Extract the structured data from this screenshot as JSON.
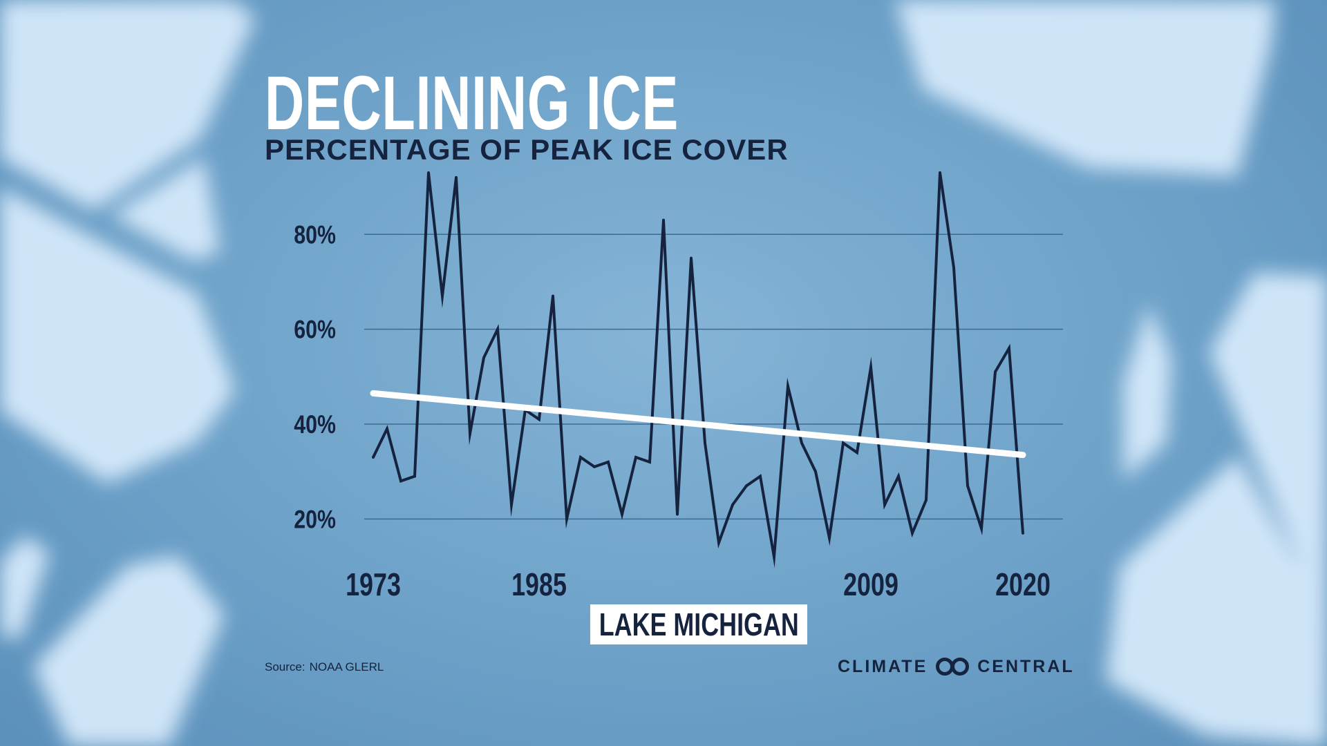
{
  "title": "DECLINING ICE",
  "subtitle": "PERCENTAGE OF PEAK ICE COVER",
  "source_label": "Source:",
  "source_value": "NOAA GLERL",
  "brand": {
    "left": "CLIMATE",
    "right": "CENTRAL"
  },
  "colors": {
    "line": "#15233f",
    "trend": "#ffffff",
    "grid": "#3e6a92",
    "text": "#15233f",
    "ice": "#d6e9fb"
  },
  "chart_data": {
    "type": "line",
    "title": "DECLINING ICE",
    "subtitle": "PERCENTAGE OF PEAK ICE COVER",
    "lake": "LAKE MICHIGAN",
    "xlabel": "",
    "ylabel": "",
    "ylim": [
      10,
      93
    ],
    "xlim": [
      1973,
      2021
    ],
    "grid": true,
    "yticks": [
      20,
      40,
      60,
      80
    ],
    "ytick_labels": [
      "20%",
      "40%",
      "60%",
      "80%"
    ],
    "xticks": [
      1973,
      1985,
      2009,
      2020
    ],
    "xtick_labels": [
      "1973",
      "1985",
      "2009",
      "2020"
    ],
    "series": [
      {
        "name": "Peak ice cover",
        "x": [
          1973,
          1974,
          1975,
          1976,
          1977,
          1978,
          1979,
          1980,
          1981,
          1982,
          1983,
          1984,
          1985,
          1986,
          1987,
          1988,
          1989,
          1990,
          1991,
          1992,
          1993,
          1994,
          1995,
          1996,
          1997,
          1998,
          1999,
          2000,
          2001,
          2002,
          2003,
          2004,
          2005,
          2006,
          2007,
          2008,
          2009,
          2010,
          2011,
          2012,
          2013,
          2014,
          2015,
          2016,
          2017,
          2018,
          2019,
          2020
        ],
        "values": [
          33,
          39,
          28,
          29,
          93,
          67,
          92,
          38,
          54,
          60,
          23,
          43,
          41,
          67,
          20,
          33,
          31,
          32,
          21,
          33,
          32,
          83,
          21,
          75,
          36,
          15,
          23,
          27,
          29,
          12,
          48,
          36,
          30,
          16,
          36,
          34,
          52,
          23,
          29,
          17,
          24,
          93,
          73,
          27,
          18,
          51,
          56,
          17
        ]
      },
      {
        "name": "Trend",
        "x": [
          1973,
          2020
        ],
        "values": [
          46.5,
          33.5
        ]
      }
    ]
  }
}
